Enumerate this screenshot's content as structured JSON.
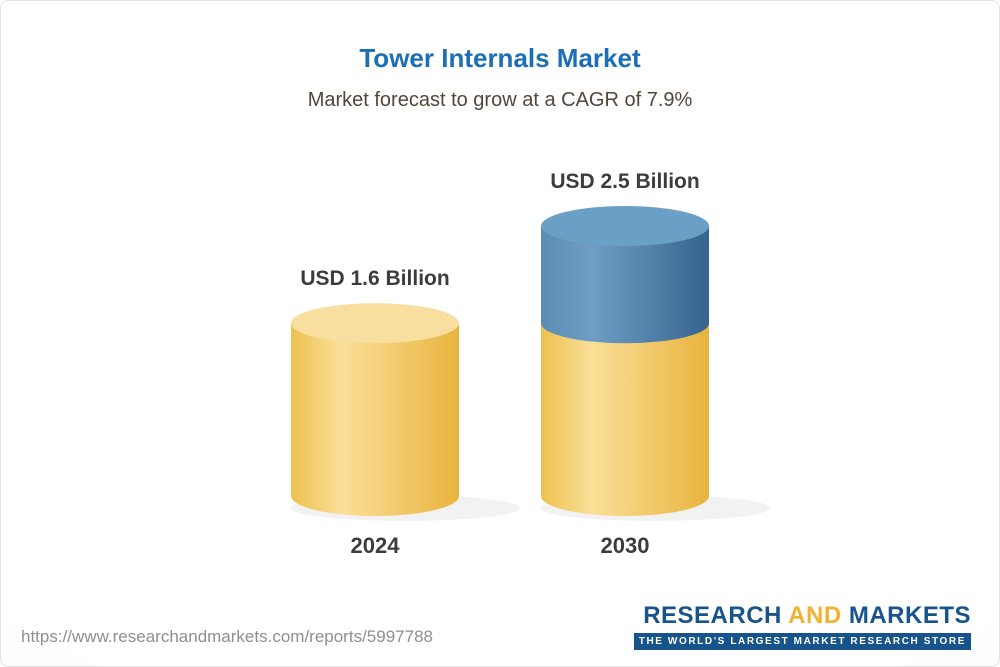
{
  "header": {
    "title": "Tower Internals Market",
    "subtitle": "Market forecast to grow at a CAGR of 7.9%"
  },
  "theme": {
    "title_color": "#1c6fb5",
    "subtitle_color": "#52463d",
    "label_color": "#3c3c3c",
    "url_color": "#8f8f8f",
    "logo_blue": "#17548c",
    "logo_gold": "#f2b231",
    "card_border": "#e3e3e3"
  },
  "chart_data": {
    "type": "bar",
    "title": "Tower Internals Market",
    "subtitle": "Market forecast to grow at a CAGR of 7.9%",
    "cagr_percent": 7.9,
    "unit": "USD Billion",
    "categories": [
      "2024",
      "2030"
    ],
    "values": [
      1.6,
      2.5
    ],
    "value_labels": [
      "USD 1.6 Billion",
      "USD 2.5 Billion"
    ],
    "stacked_segments": [
      [
        {
          "value": 1.6,
          "segment": "base"
        }
      ],
      [
        {
          "value": 1.6,
          "segment": "base"
        },
        {
          "value": 0.9,
          "segment": "growth"
        }
      ]
    ],
    "ylim": [
      0,
      2.5
    ],
    "legend": "none",
    "grid": "off",
    "colors": {
      "base": {
        "edge": "#eec14f",
        "light": "#fadf98",
        "dark": "#e9b43e",
        "cap": "#f8dfa0"
      },
      "growth": {
        "edge": "#5a8cb5",
        "light": "#6f9ec4",
        "dark": "#35648f",
        "cap": "#6ba0c6"
      }
    }
  },
  "footer": {
    "url": "https://www.researchandmarkets.com/reports/5997788",
    "logo": {
      "research": "RESEARCH",
      "and": "AND",
      "markets": "MARKETS",
      "tagline": "THE WORLD'S LARGEST MARKET RESEARCH STORE"
    }
  }
}
